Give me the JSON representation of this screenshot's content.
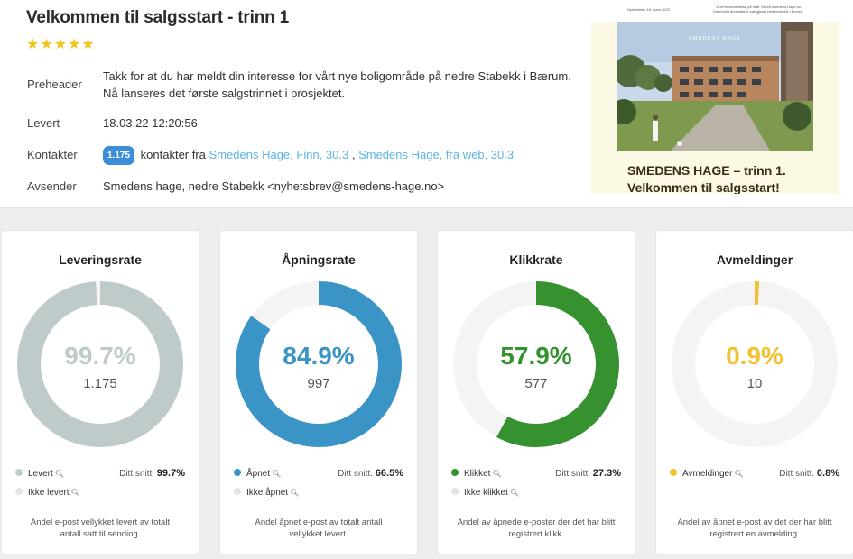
{
  "header": {
    "title": "Velkommen til salgsstart - trinn 1",
    "rating_stars": 5,
    "rows": {
      "preheader_label": "Preheader",
      "preheader_value": "Takk for at du har meldt din interesse for vårt nye boligområde på nedre Stabekk i Bærum. Nå lanseres det første salgstrinnet i prosjektet.",
      "levert_label": "Levert",
      "levert_value": "18.03.22 12:20:56",
      "kontakter_label": "Kontakter",
      "kontakter_count": "1.175",
      "kontakter_text": "kontakter fra",
      "kontakter_link1": "Smedens Hage, Finn, 30.3",
      "kontakter_sep": ",",
      "kontakter_link2": "Smedens Hage, fra web, 30.3",
      "avsender_label": "Avsender",
      "avsender_value": "Smedens hage, nedre Stabekk <nyhetsbrev@smedens-hage.no>"
    },
    "preview": {
      "top_left": "Nyhetsbrev 18. mars 2022",
      "top_right": "Vent hennmeldelse på mail. Sendt smedens-hage.no. Dannbuild anmeldelse kan gjøres helt nedenfor i brevet",
      "logo_text": "SMEDENS HAGE",
      "caption_line1": "SMEDENS HAGE – trinn 1.",
      "caption_line2": "Velkommen til salgsstart!"
    }
  },
  "colors": {
    "levert": "#bfcbcb",
    "apnet": "#3b94c6",
    "klikket": "#35922f",
    "avmeld": "#f2c233",
    "track": "#f4f4f4"
  },
  "cards": [
    {
      "title": "Leveringsrate",
      "percent": "99.7%",
      "percent_value": 99.7,
      "count": "1.175",
      "legend1": "Levert",
      "legend2": "Ikke levert",
      "avg_label": "Ditt snitt.",
      "avg_value": "99.7%",
      "desc": "Andel e-post vellykket levert av totalt antall satt til sending."
    },
    {
      "title": "Åpningsrate",
      "percent": "84.9%",
      "percent_value": 84.9,
      "count": "997",
      "legend1": "Åpnet",
      "legend2": "Ikke åpnet",
      "avg_label": "Ditt snitt.",
      "avg_value": "66.5%",
      "desc": "Andel åpnet e-post av totalt antall vellykket levert."
    },
    {
      "title": "Klikkrate",
      "percent": "57.9%",
      "percent_value": 57.9,
      "count": "577",
      "legend1": "Klikket",
      "legend2": "Ikke klikket",
      "avg_label": "Ditt snitt.",
      "avg_value": "27.3%",
      "desc": "Andel av åpnede e-poster der det har blitt registrert klikk."
    },
    {
      "title": "Avmeldinger",
      "percent": "0.9%",
      "percent_value": 0.9,
      "count": "10",
      "legend1": "Avmeldinger",
      "avg_label": "Ditt snitt.",
      "avg_value": "0.8%",
      "desc": "Andel av åpnet e-post av det der har blitt registrert en avmelding."
    }
  ]
}
